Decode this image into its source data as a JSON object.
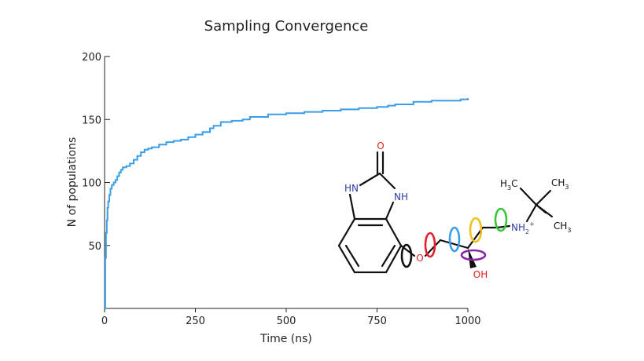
{
  "chart_data": {
    "type": "line",
    "title": "Sampling Convergence",
    "xlabel": "Time (ns)",
    "ylabel": "N of populations",
    "xlim": [
      0,
      1000
    ],
    "ylim": [
      0,
      200
    ],
    "x_ticks": [
      0,
      250,
      500,
      750,
      1000
    ],
    "y_ticks": [
      50,
      100,
      150,
      200
    ],
    "x_tick_labels": [
      "0",
      "250",
      "500",
      "750",
      "1000"
    ],
    "y_tick_labels": [
      "50",
      "100",
      "150",
      "200"
    ],
    "step": true,
    "series": [
      {
        "color": "#3a9ee6",
        "x": [
          0,
          2,
          4,
          6,
          8,
          10,
          13,
          16,
          20,
          25,
          30,
          35,
          40,
          45,
          50,
          55,
          60,
          70,
          80,
          90,
          100,
          110,
          120,
          130,
          150,
          170,
          190,
          210,
          230,
          250,
          270,
          290,
          300,
          320,
          350,
          380,
          400,
          450,
          500,
          550,
          600,
          650,
          700,
          750,
          780,
          800,
          850,
          900,
          950,
          980,
          1000
        ],
        "y": [
          0,
          40,
          60,
          70,
          80,
          85,
          90,
          95,
          98,
          100,
          102,
          105,
          108,
          110,
          112,
          112,
          113,
          115,
          118,
          121,
          124,
          126,
          127,
          128,
          130,
          132,
          133,
          134,
          136,
          138,
          140,
          143,
          145,
          148,
          149,
          150,
          152,
          154,
          155,
          156,
          157,
          158,
          159,
          160,
          161,
          162,
          164,
          165,
          165,
          166,
          167
        ]
      }
    ]
  },
  "molecule": {
    "carbonyl_o": "O",
    "nh_left": "HN",
    "nh_right": "NH",
    "ether_o": "O",
    "hydroxyl": "OH",
    "amine": "NH",
    "amine_sub": "2",
    "amine_charge": "+",
    "methyl_top_left_h": "H",
    "methyl_top_left_sub": "3",
    "methyl_top_left_c": "C",
    "methyl_top_right": "CH",
    "methyl_top_right_sub": "3",
    "methyl_bottom": "CH",
    "methyl_bottom_sub": "3",
    "colors": {
      "hetero_o": "#e02020",
      "hetero_n": "#2e3c9a",
      "rot_black": "#111111",
      "rot_red": "#e5202a",
      "rot_blue": "#3a9ee6",
      "rot_yellow": "#f0c020",
      "rot_purple": "#8e24aa",
      "rot_green": "#3ac43a"
    }
  }
}
